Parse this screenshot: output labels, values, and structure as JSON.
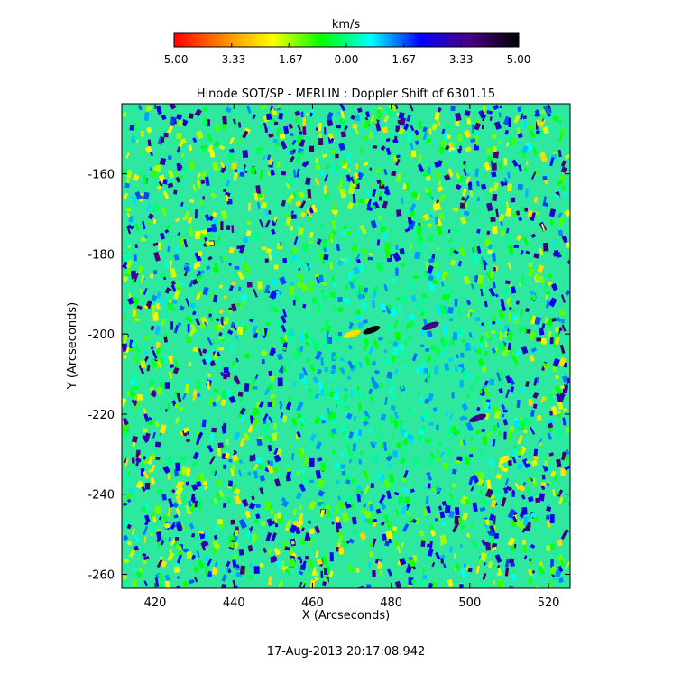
{
  "chart_data": {
    "type": "heatmap",
    "title": "Hinode SOT/SP - MERLIN : Doppler Shift of 6301.15",
    "xlabel": "X (Arcseconds)",
    "ylabel": "Y (Arcseconds)",
    "xlim": [
      411.5,
      525.5
    ],
    "ylim": [
      -263.5,
      -142.5
    ],
    "x_ticks": [
      "420",
      "440",
      "460",
      "480",
      "500",
      "520"
    ],
    "y_ticks": [
      "-160",
      "-180",
      "-200",
      "-220",
      "-240",
      "-260"
    ],
    "x_tick_values": [
      420,
      440,
      460,
      480,
      500,
      520
    ],
    "y_tick_values": [
      -160,
      -180,
      -200,
      -220,
      -240,
      -260
    ],
    "colorbar": {
      "label": "km/s",
      "range": [
        -5.0,
        5.0
      ],
      "ticks": [
        "-5.00",
        "-3.33",
        "-1.67",
        "0.00",
        "1.67",
        "3.33",
        "5.00"
      ],
      "tick_values": [
        -5.0,
        -3.33,
        -1.67,
        0.0,
        1.67,
        3.33,
        5.0
      ],
      "colormap": [
        "#ff0000",
        "#ff8800",
        "#ffff00",
        "#00ff00",
        "#00ffff",
        "#0000ff",
        "#4b0082",
        "#000000"
      ]
    },
    "dominant_value_km_s": 0.8,
    "features": [
      {
        "x": 475,
        "y": -199,
        "value": 5.0
      },
      {
        "x": 490,
        "y": -198,
        "value": 3.6
      },
      {
        "x": 502,
        "y": -221,
        "value": 3.4
      },
      {
        "x": 470,
        "y": -200,
        "value": -2.5
      }
    ],
    "timestamp": "17-Aug-2013 20:17:08.942"
  }
}
